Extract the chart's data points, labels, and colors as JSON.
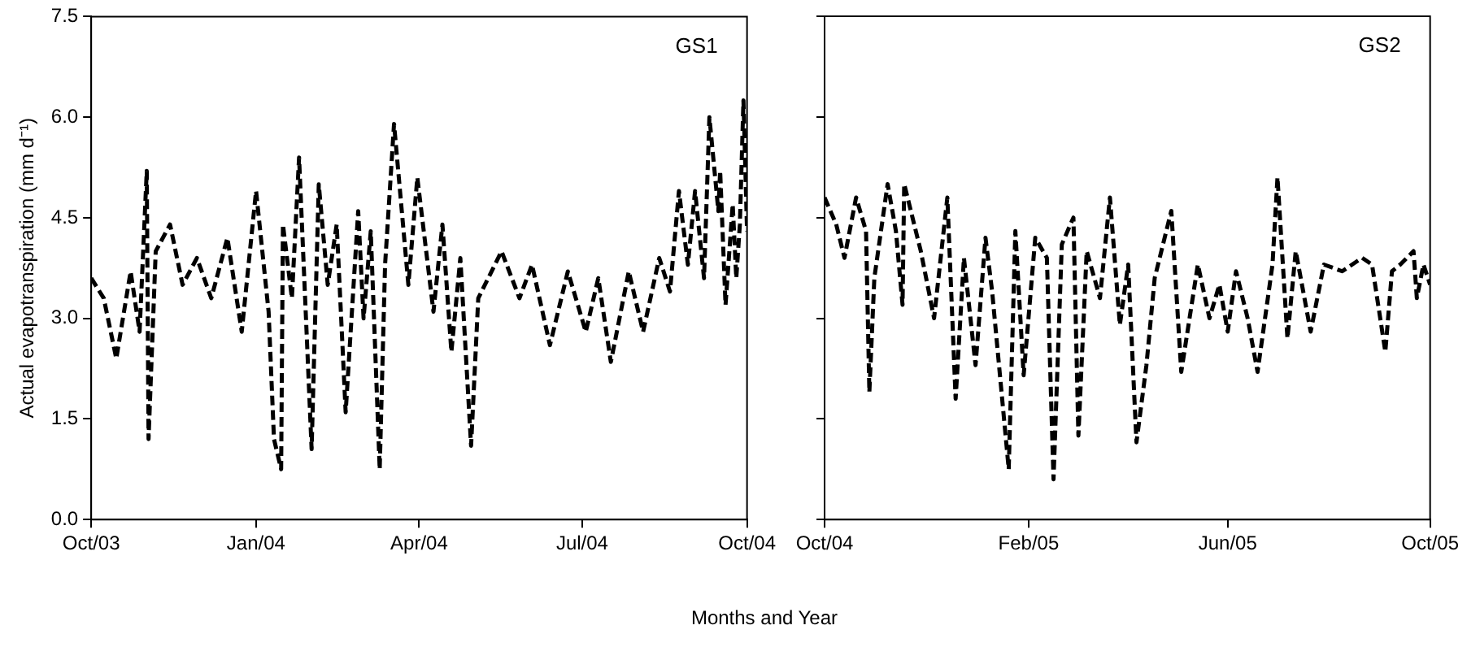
{
  "chart_data": [
    {
      "type": "line",
      "ylabel": "Actual evapotranspiration (mm d⁻¹)",
      "xlabel": "Months and Year",
      "annotations": [
        "GS1"
      ],
      "line_style": "dashed",
      "marker": "none",
      "color": "#000000",
      "grid": false,
      "xlim": [
        "2003-10-01",
        "2004-10-01"
      ],
      "xticks": [
        {
          "value": "2003-10",
          "label": "Oct/03"
        },
        {
          "value": "2004-01",
          "label": "Jan/04"
        },
        {
          "value": "2004-04",
          "label": "Apr/04"
        },
        {
          "value": "2004-07",
          "label": "Jul/04"
        },
        {
          "value": "2004-10",
          "label": "Oct/04"
        }
      ],
      "ylim": [
        0,
        7.5
      ],
      "yticks": [
        {
          "value": 0,
          "label": "0.0"
        },
        {
          "value": 1.5,
          "label": "1.5"
        },
        {
          "value": 3,
          "label": "3.0"
        },
        {
          "value": 4.5,
          "label": "4.5"
        },
        {
          "value": 6,
          "label": "6.0"
        },
        {
          "value": 7.5,
          "label": "7.5"
        }
      ],
      "x": [
        "2003-10-01",
        "2003-10-08",
        "2003-10-15",
        "2003-10-23",
        "2003-10-28",
        "2003-11-01",
        "2003-11-02",
        "2003-11-06",
        "2003-11-14",
        "2003-11-21",
        "2003-11-29",
        "2003-12-07",
        "2003-12-16",
        "2003-12-24",
        "2004-01-01",
        "2004-01-08",
        "2004-01-11",
        "2004-01-15",
        "2004-01-16",
        "2004-01-21",
        "2004-01-25",
        "2004-02-01",
        "2004-02-05",
        "2004-02-10",
        "2004-02-15",
        "2004-02-20",
        "2004-02-27",
        "2004-03-01",
        "2004-03-05",
        "2004-03-10",
        "2004-03-13",
        "2004-03-18",
        "2004-03-26",
        "2004-03-31",
        "2004-04-09",
        "2004-04-14",
        "2004-04-19",
        "2004-04-24",
        "2004-04-30",
        "2004-05-04",
        "2004-05-17",
        "2004-05-27",
        "2004-06-03",
        "2004-06-13",
        "2004-06-23",
        "2004-07-03",
        "2004-07-10",
        "2004-07-17",
        "2004-07-27",
        "2004-08-04",
        "2004-08-13",
        "2004-08-19",
        "2004-08-24",
        "2004-08-29",
        "2004-09-02",
        "2004-09-07",
        "2004-09-10",
        "2004-09-15",
        "2004-09-16",
        "2004-09-19",
        "2004-09-23",
        "2004-09-25",
        "2004-09-27",
        "2004-09-29",
        "2004-10-01"
      ],
      "values": [
        3.6,
        3.3,
        2.4,
        3.7,
        2.8,
        5.2,
        1.2,
        4.0,
        4.4,
        3.5,
        3.9,
        3.3,
        4.2,
        2.8,
        4.9,
        3.1,
        1.2,
        0.75,
        4.4,
        3.3,
        5.4,
        1.05,
        5.0,
        3.5,
        4.4,
        1.6,
        4.6,
        3.0,
        4.3,
        0.75,
        3.8,
        5.9,
        3.5,
        5.1,
        3.1,
        4.4,
        2.5,
        3.9,
        1.1,
        3.3,
        4.0,
        3.3,
        3.8,
        2.6,
        3.7,
        2.8,
        3.6,
        2.35,
        3.7,
        2.8,
        3.9,
        3.4,
        4.9,
        3.8,
        4.9,
        3.6,
        6.0,
        4.6,
        5.2,
        3.2,
        4.7,
        3.6,
        4.4,
        6.25,
        4.3
      ]
    },
    {
      "type": "line",
      "annotations": [
        "GS2"
      ],
      "line_style": "dashed",
      "marker": "none",
      "color": "#000000",
      "grid": false,
      "tick_labels": "x",
      "xlim": [
        "2004-10-01",
        "2005-10-01"
      ],
      "xticks": [
        {
          "value": "2004-10",
          "label": "Oct/04"
        },
        {
          "value": "2005-02",
          "label": "Feb/05"
        },
        {
          "value": "2005-06",
          "label": "Jun/05"
        },
        {
          "value": "2005-10",
          "label": "Oct/05"
        }
      ],
      "ylim": [
        0,
        7.5
      ],
      "yticks": [
        0,
        1.5,
        3,
        4.5,
        6,
        7.5
      ],
      "x": [
        "2004-10-01",
        "2004-10-08",
        "2004-10-13",
        "2004-10-20",
        "2004-10-26",
        "2004-10-28",
        "2004-10-31",
        "2004-11-08",
        "2004-11-13",
        "2004-11-17",
        "2004-11-18",
        "2004-11-28",
        "2004-12-06",
        "2004-12-14",
        "2004-12-19",
        "2004-12-24",
        "2004-12-31",
        "2005-01-06",
        "2005-01-10",
        "2005-01-20",
        "2005-01-24",
        "2005-01-29",
        "2005-02-05",
        "2005-02-12",
        "2005-02-16",
        "2005-02-21",
        "2005-02-28",
        "2005-03-03",
        "2005-03-08",
        "2005-03-16",
        "2005-03-22",
        "2005-03-28",
        "2005-04-02",
        "2005-04-07",
        "2005-04-13",
        "2005-04-18",
        "2005-04-28",
        "2005-05-04",
        "2005-05-14",
        "2005-05-21",
        "2005-05-27",
        "2005-06-01",
        "2005-06-06",
        "2005-06-13",
        "2005-06-19",
        "2005-06-28",
        "2005-07-01",
        "2005-07-07",
        "2005-07-12",
        "2005-07-21",
        "2005-07-29",
        "2005-08-09",
        "2005-08-21",
        "2005-08-27",
        "2005-09-04",
        "2005-09-08",
        "2005-09-13",
        "2005-09-21",
        "2005-09-23",
        "2005-09-27",
        "2005-10-01"
      ],
      "values": [
        4.8,
        4.4,
        3.9,
        4.8,
        4.3,
        1.9,
        3.6,
        5.0,
        4.3,
        3.2,
        5.0,
        4.0,
        3.0,
        4.8,
        1.8,
        3.9,
        2.3,
        4.2,
        3.4,
        0.75,
        4.3,
        2.15,
        4.2,
        3.9,
        0.6,
        4.1,
        4.5,
        1.25,
        4.0,
        3.3,
        4.8,
        2.9,
        3.8,
        1.15,
        2.3,
        3.6,
        4.6,
        2.2,
        3.8,
        3.0,
        3.5,
        2.8,
        3.7,
        3.0,
        2.2,
        3.8,
        5.1,
        2.7,
        4.0,
        2.8,
        3.8,
        3.7,
        3.9,
        3.8,
        2.5,
        3.7,
        3.8,
        4.0,
        3.3,
        3.8,
        3.5
      ]
    }
  ]
}
